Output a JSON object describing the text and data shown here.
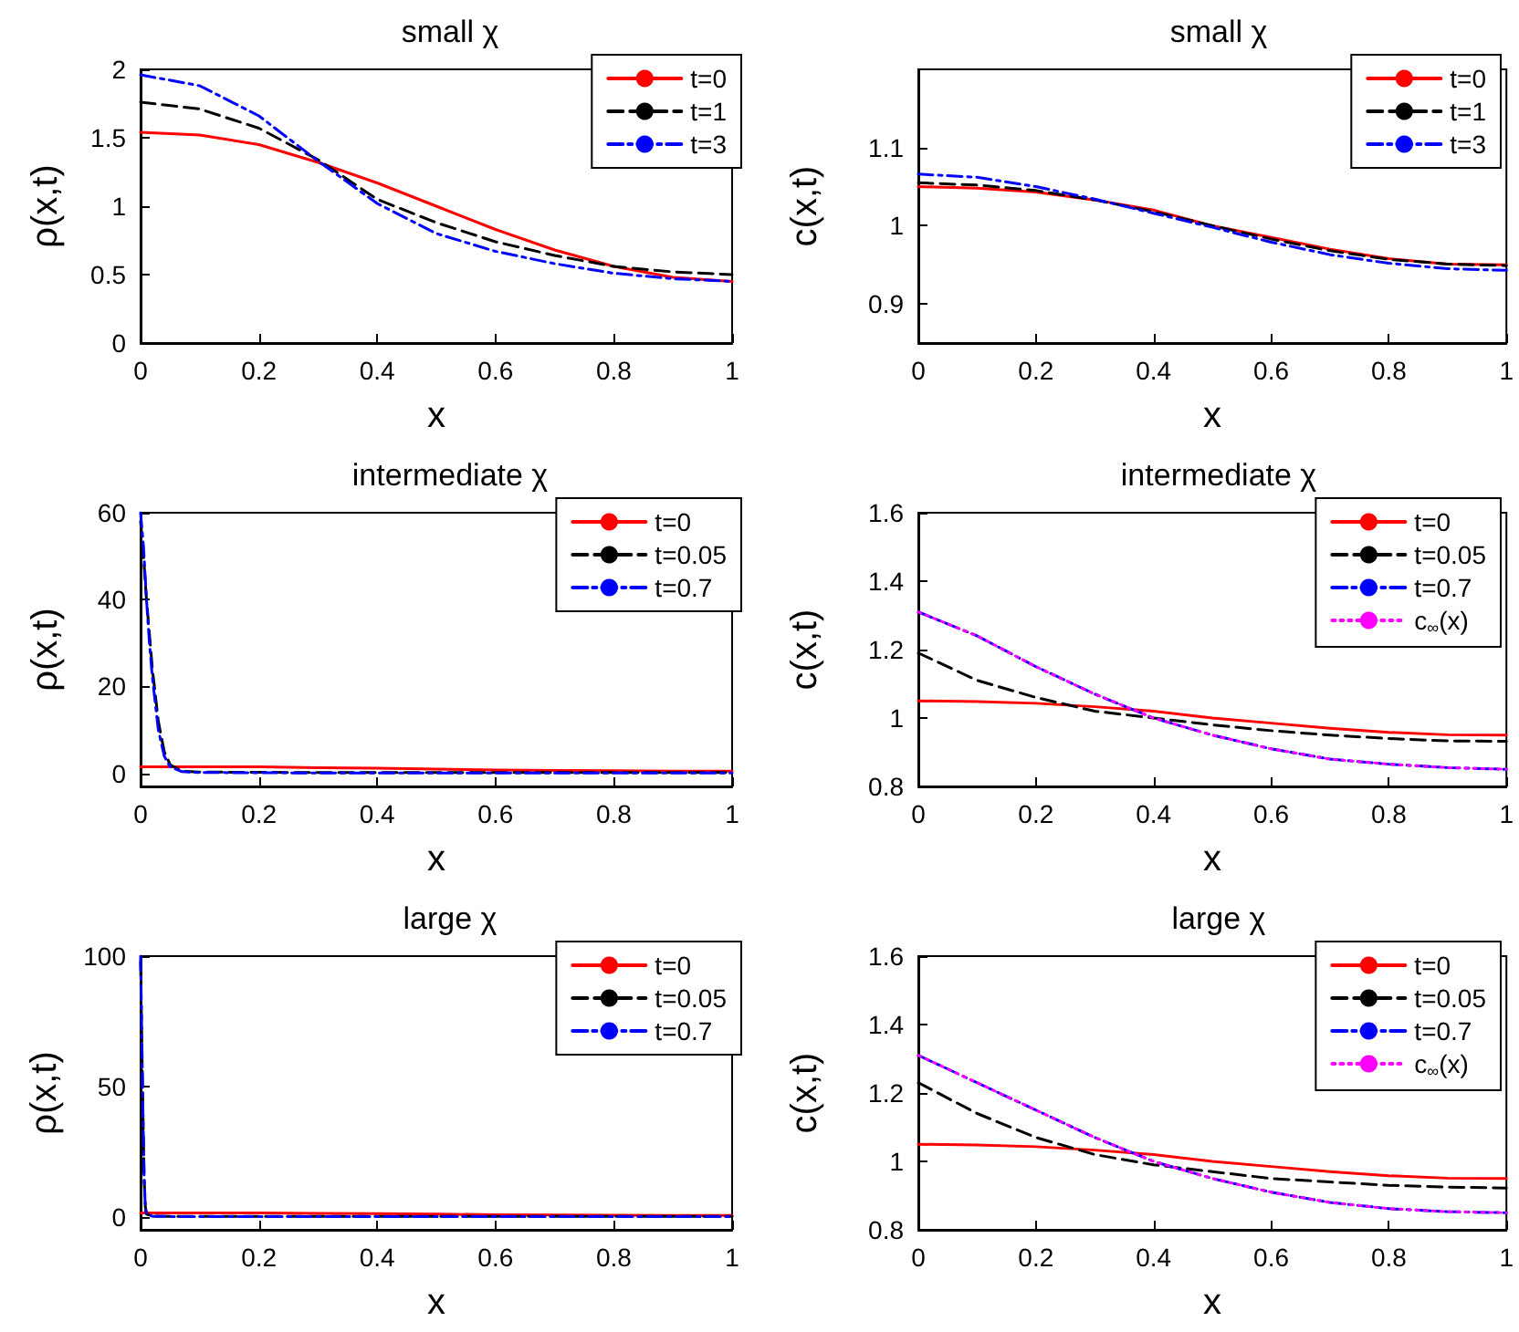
{
  "chart_data": [
    {
      "type": "line",
      "title": "small χ",
      "xlabel": "x",
      "ylabel": "ρ(x,t)",
      "x": [
        0,
        0.1,
        0.2,
        0.3,
        0.4,
        0.5,
        0.6,
        0.7,
        0.8,
        0.9,
        1
      ],
      "xlim": [
        0,
        1
      ],
      "xticks": [
        0,
        0.2,
        0.4,
        0.6,
        0.8,
        1
      ],
      "ylim": [
        0,
        2
      ],
      "yticks": [
        0,
        0.5,
        1,
        1.5,
        2
      ],
      "grid": false,
      "legend": "top right",
      "marker": "none",
      "series": [
        {
          "name": "t=0",
          "color": "#ff0000",
          "line_style": "solid",
          "values": [
            1.54,
            1.52,
            1.45,
            1.32,
            1.17,
            1.0,
            0.83,
            0.68,
            0.56,
            0.48,
            0.45
          ]
        },
        {
          "name": "t=1",
          "color": "#000000",
          "line_style": "dashed",
          "values": [
            1.76,
            1.71,
            1.57,
            1.34,
            1.05,
            0.88,
            0.74,
            0.64,
            0.56,
            0.52,
            0.5
          ]
        },
        {
          "name": "t=3",
          "color": "#0000ff",
          "line_style": "dashdot",
          "values": [
            1.96,
            1.88,
            1.66,
            1.33,
            1.02,
            0.8,
            0.67,
            0.58,
            0.51,
            0.47,
            0.45
          ]
        }
      ]
    },
    {
      "type": "line",
      "title": "small χ",
      "xlabel": "x",
      "ylabel": "c(x,t)",
      "x": [
        0,
        0.1,
        0.2,
        0.3,
        0.4,
        0.5,
        0.6,
        0.7,
        0.8,
        0.9,
        1
      ],
      "xlim": [
        0,
        1
      ],
      "xticks": [
        0,
        0.2,
        0.4,
        0.6,
        0.8,
        1
      ],
      "ylim": [
        0.85,
        1.2
      ],
      "yticks": [
        0.9,
        1,
        1.1
      ],
      "grid": false,
      "legend": "top right",
      "marker": "none",
      "series": [
        {
          "name": "t=0",
          "color": "#ff0000",
          "line_style": "solid",
          "values": [
            1.05,
            1.048,
            1.043,
            1.033,
            1.02,
            1.0,
            0.985,
            0.97,
            0.958,
            0.951,
            0.95
          ]
        },
        {
          "name": "t=1",
          "color": "#000000",
          "line_style": "dashed",
          "values": [
            1.055,
            1.052,
            1.045,
            1.033,
            1.018,
            1.0,
            0.983,
            0.968,
            0.957,
            0.951,
            0.949
          ]
        },
        {
          "name": "t=3",
          "color": "#0000ff",
          "line_style": "dashdot",
          "values": [
            1.066,
            1.062,
            1.05,
            1.034,
            1.016,
            0.998,
            0.979,
            0.963,
            0.952,
            0.945,
            0.943
          ]
        }
      ]
    },
    {
      "type": "line",
      "title": "intermediate χ",
      "xlabel": "x",
      "ylabel": "ρ(x,t)",
      "x": [
        0,
        0.1,
        0.2,
        0.3,
        0.4,
        0.5,
        0.6,
        0.7,
        0.8,
        0.9,
        1
      ],
      "xlim": [
        0,
        1
      ],
      "xticks": [
        0,
        0.2,
        0.4,
        0.6,
        0.8,
        1
      ],
      "ylim": [
        -3,
        60
      ],
      "yticks": [
        0,
        20,
        40,
        60
      ],
      "grid": false,
      "legend": "top right",
      "marker": "none",
      "series": [
        {
          "name": "t=0",
          "color": "#ff0000",
          "line_style": "solid",
          "values": [
            1.5,
            1.5,
            1.5,
            1.3,
            1.2,
            1.0,
            0.8,
            0.7,
            0.6,
            0.5,
            0.5
          ]
        },
        {
          "name": "t=0.05",
          "color": "#000000",
          "line_style": "dashed",
          "x": [
            0,
            0.005,
            0.01,
            0.015,
            0.02,
            0.03,
            0.04,
            0.05,
            0.07,
            0.1,
            0.3,
            0.5,
            0.7,
            1
          ],
          "values": [
            58,
            50,
            40,
            32,
            24,
            12,
            5,
            2,
            0.5,
            0.3,
            0.2,
            0.2,
            0.2,
            0.2
          ]
        },
        {
          "name": "t=0.7",
          "color": "#0000ff",
          "line_style": "dashdot",
          "x": [
            0,
            0.005,
            0.01,
            0.015,
            0.02,
            0.03,
            0.04,
            0.05,
            0.07,
            0.1,
            0.3,
            0.5,
            0.7,
            1
          ],
          "values": [
            60,
            52,
            40,
            30,
            22,
            10,
            4,
            1.5,
            0.4,
            0.2,
            0.1,
            0.1,
            0.1,
            0.1
          ]
        }
      ]
    },
    {
      "type": "line",
      "title": "intermediate χ",
      "xlabel": "x",
      "ylabel": "c(x,t)",
      "x": [
        0,
        0.1,
        0.2,
        0.3,
        0.4,
        0.5,
        0.6,
        0.7,
        0.8,
        0.9,
        1
      ],
      "xlim": [
        0,
        1
      ],
      "xticks": [
        0,
        0.2,
        0.4,
        0.6,
        0.8,
        1
      ],
      "ylim": [
        0.8,
        1.6
      ],
      "yticks": [
        0.8,
        1,
        1.2,
        1.4,
        1.6
      ],
      "grid": false,
      "legend": "top right",
      "marker": "none",
      "series": [
        {
          "name": "t=0",
          "color": "#ff0000",
          "line_style": "solid",
          "values": [
            1.05,
            1.048,
            1.043,
            1.033,
            1.02,
            1.0,
            0.985,
            0.97,
            0.958,
            0.951,
            0.95
          ]
        },
        {
          "name": "t=0.05",
          "color": "#000000",
          "line_style": "dashed",
          "values": [
            1.19,
            1.11,
            1.06,
            1.02,
            1.0,
            0.98,
            0.963,
            0.95,
            0.94,
            0.933,
            0.932
          ]
        },
        {
          "name": "t=0.7",
          "color": "#0000ff",
          "line_style": "dashdot",
          "values": [
            1.31,
            1.24,
            1.15,
            1.07,
            1.0,
            0.95,
            0.91,
            0.88,
            0.865,
            0.855,
            0.85
          ]
        },
        {
          "name": "c$_{∞}$(x)",
          "color": "#ff00ff",
          "line_style": "dotted",
          "values": [
            1.31,
            1.24,
            1.15,
            1.07,
            1.0,
            0.95,
            0.91,
            0.88,
            0.865,
            0.855,
            0.85
          ]
        }
      ]
    },
    {
      "type": "line",
      "title": "large χ",
      "xlabel": "x",
      "ylabel": "ρ(x,t)",
      "x": [
        0,
        0.1,
        0.2,
        0.3,
        0.4,
        0.5,
        0.6,
        0.7,
        0.8,
        0.9,
        1
      ],
      "xlim": [
        0,
        1
      ],
      "xticks": [
        0,
        0.2,
        0.4,
        0.6,
        0.8,
        1
      ],
      "ylim": [
        -5,
        100
      ],
      "yticks": [
        0,
        50,
        100
      ],
      "grid": false,
      "legend": "top right",
      "marker": "none",
      "series": [
        {
          "name": "t=0",
          "color": "#ff0000",
          "line_style": "solid",
          "values": [
            1.5,
            1.5,
            1.5,
            1.3,
            1.2,
            1.0,
            0.8,
            0.7,
            0.6,
            0.5,
            0.5
          ]
        },
        {
          "name": "t=0.05",
          "color": "#000000",
          "line_style": "dashed",
          "x": [
            0,
            0.002,
            0.004,
            0.006,
            0.008,
            0.01,
            0.02,
            0.05,
            0.1,
            0.5,
            1
          ],
          "values": [
            98,
            68,
            40,
            15,
            4,
            1,
            0.3,
            0.2,
            0.2,
            0.2,
            0.2
          ]
        },
        {
          "name": "t=0.7",
          "color": "#0000ff",
          "line_style": "dashdot",
          "x": [
            0,
            0.002,
            0.004,
            0.006,
            0.008,
            0.01,
            0.02,
            0.05,
            0.1,
            0.5,
            1
          ],
          "values": [
            100,
            70,
            40,
            15,
            4,
            1,
            0.2,
            0.1,
            0.1,
            0.1,
            0.1
          ]
        }
      ]
    },
    {
      "type": "line",
      "title": "large χ",
      "xlabel": "x",
      "ylabel": "c(x,t)",
      "x": [
        0,
        0.1,
        0.2,
        0.3,
        0.4,
        0.5,
        0.6,
        0.7,
        0.8,
        0.9,
        1
      ],
      "xlim": [
        0,
        1
      ],
      "xticks": [
        0,
        0.2,
        0.4,
        0.6,
        0.8,
        1
      ],
      "ylim": [
        0.8,
        1.6
      ],
      "yticks": [
        0.8,
        1,
        1.2,
        1.4,
        1.6
      ],
      "grid": false,
      "legend": "top right",
      "marker": "none",
      "series": [
        {
          "name": "t=0",
          "color": "#ff0000",
          "line_style": "solid",
          "values": [
            1.05,
            1.048,
            1.043,
            1.033,
            1.02,
            1.0,
            0.985,
            0.97,
            0.958,
            0.951,
            0.95
          ]
        },
        {
          "name": "t=0.05",
          "color": "#000000",
          "line_style": "dashed",
          "values": [
            1.23,
            1.14,
            1.07,
            1.02,
            0.99,
            0.97,
            0.95,
            0.94,
            0.93,
            0.925,
            0.922
          ]
        },
        {
          "name": "t=0.7",
          "color": "#0000ff",
          "line_style": "dashdot",
          "values": [
            1.31,
            1.23,
            1.15,
            1.07,
            1.0,
            0.95,
            0.91,
            0.88,
            0.862,
            0.853,
            0.85
          ]
        },
        {
          "name": "c$_{∞}$(x)",
          "color": "#ff00ff",
          "line_style": "dotted",
          "values": [
            1.31,
            1.23,
            1.15,
            1.07,
            1.0,
            0.95,
            0.91,
            0.88,
            0.862,
            0.853,
            0.85
          ]
        }
      ]
    }
  ]
}
